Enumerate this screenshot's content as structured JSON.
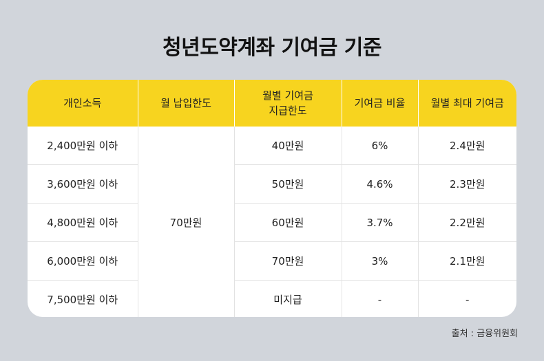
{
  "title": "청년도약계좌 기여금 기준",
  "headers": [
    "개인소득",
    "월 납입한도",
    "월별 기여금 지급한도",
    "기여금 비율",
    "월별 최대 기여금"
  ],
  "header_lines": {
    "col3_line1": "월별 기여금",
    "col3_line2": "지급한도"
  },
  "monthly_limit": "70만원",
  "rows": [
    {
      "income": "2,400만원 이하",
      "contribution_limit": "40만원",
      "rate": "6%",
      "max": "2.4만원"
    },
    {
      "income": "3,600만원 이하",
      "contribution_limit": "50만원",
      "rate": "4.6%",
      "max": "2.3만원"
    },
    {
      "income": "4,800만원 이하",
      "contribution_limit": "60만원",
      "rate": "3.7%",
      "max": "2.2만원"
    },
    {
      "income": "6,000만원 이하",
      "contribution_limit": "70만원",
      "rate": "3%",
      "max": "2.1만원"
    },
    {
      "income": "7,500만원 이하",
      "contribution_limit": "미지급",
      "rate": "-",
      "max": "-"
    }
  ],
  "source": "출처 : 금융위원회",
  "colors": {
    "background": "#d1d5db",
    "header": "#f7d41f",
    "table": "#ffffff"
  }
}
